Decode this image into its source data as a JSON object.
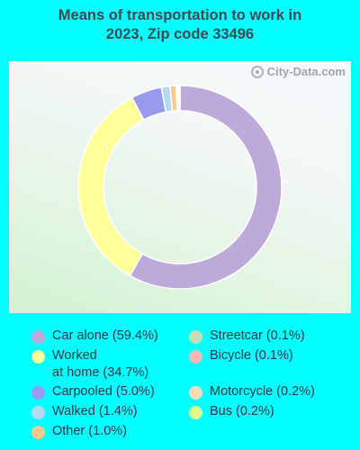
{
  "title_line1": "Means of transportation to work in",
  "title_line2": "2023, Zip code 33496",
  "watermark": "City-Data.com",
  "chart_data": {
    "type": "pie",
    "style": "donut",
    "categories": [
      "Car alone",
      "Worked at home",
      "Carpooled",
      "Walked",
      "Other",
      "Streetcar",
      "Bicycle",
      "Motorcycle",
      "Bus"
    ],
    "values": [
      59.4,
      34.7,
      5.0,
      1.4,
      1.0,
      0.1,
      0.1,
      0.2,
      0.2
    ],
    "colors": [
      "#bda9da",
      "#ffff99",
      "#9999ee",
      "#b4d9f7",
      "#f7c98a",
      "#c4ddb6",
      "#f2b8b3",
      "#f7dcb8",
      "#e0f98f"
    ],
    "legend": [
      {
        "label": "Car alone (59.4%)",
        "color": "#bda9da"
      },
      {
        "label": "Worked at home (34.7%)",
        "color": "#ffff99"
      },
      {
        "label": "Carpooled (5.0%)",
        "color": "#9999ee"
      },
      {
        "label": "Walked (1.4%)",
        "color": "#b4d9f7"
      },
      {
        "label": "Other (1.0%)",
        "color": "#f7c98a"
      },
      {
        "label": "Streetcar (0.1%)",
        "color": "#c4ddb6"
      },
      {
        "label": "Bicycle (0.1%)",
        "color": "#f2b8b3"
      },
      {
        "label": "Motorcycle (0.2%)",
        "color": "#f7dcb8"
      },
      {
        "label": "Bus (0.2%)",
        "color": "#e0f98f"
      }
    ],
    "legend_placement": "bottom"
  }
}
